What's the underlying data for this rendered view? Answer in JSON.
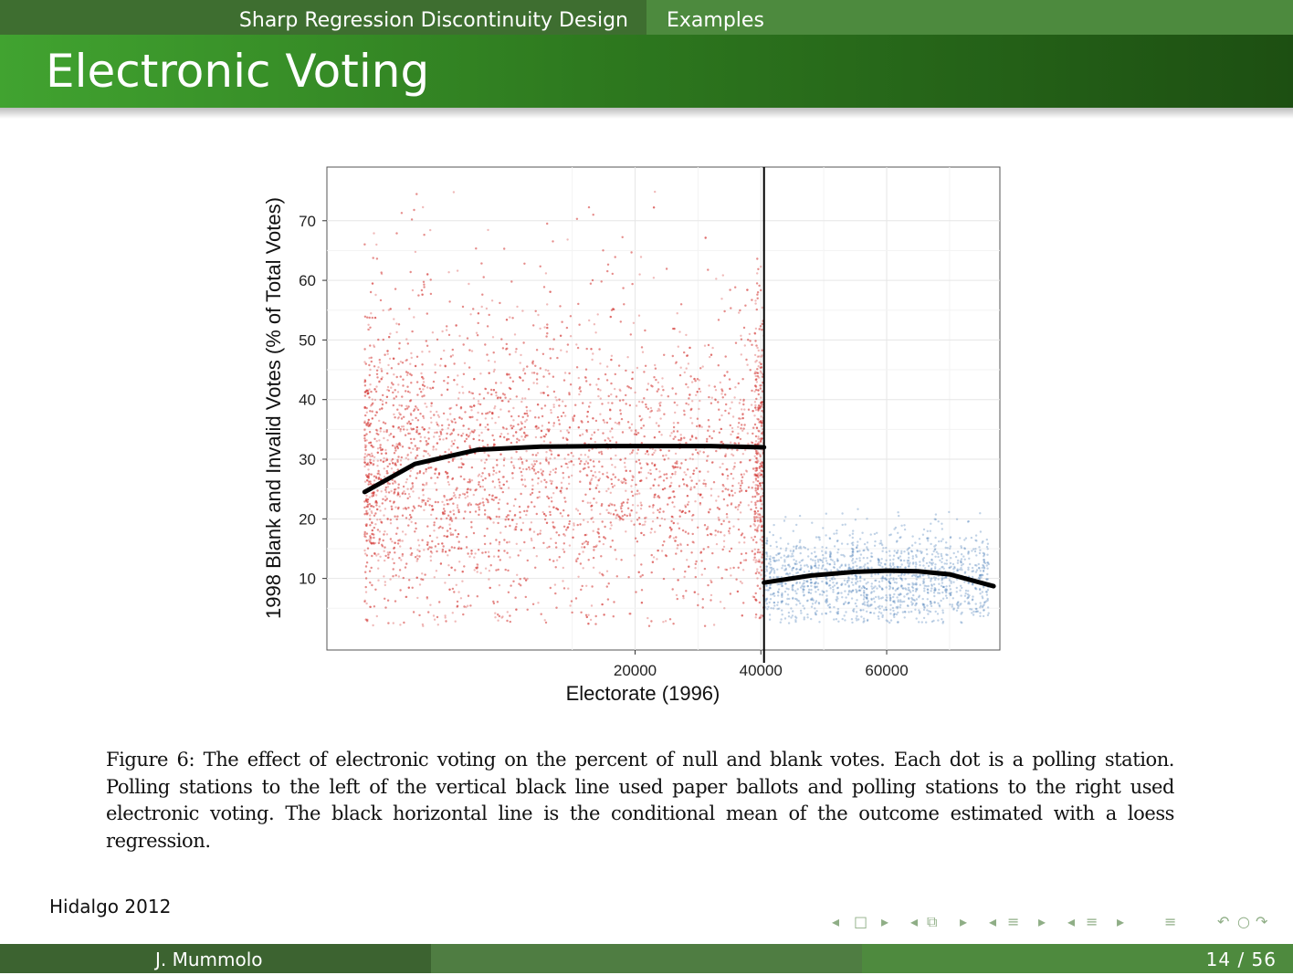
{
  "nav": {
    "section": "Sharp Regression Discontinuity Design",
    "subsection": "Examples"
  },
  "frame": {
    "title": "Electronic Voting"
  },
  "figure": {
    "caption": "Figure 6: The effect of electronic voting on the percent of null and blank votes. Each dot is a polling station. Polling stations to the left of the vertical black line used paper ballots and polling stations to the right used electronic voting. The black horizontal line is the conditional mean of the outcome estimated with a loess regression."
  },
  "citation": "Hidalgo 2012",
  "footer": {
    "author": "J. Mummolo",
    "page": "14 / 56"
  },
  "navigation_icons": [
    "frame-prev-icon",
    "frame-icon",
    "frame-next-icon",
    "subsection-prev-icon",
    "subsection-icon",
    "subsection-next-icon",
    "section-prev-icon",
    "section-icon",
    "section-next-icon",
    "document-prev-icon",
    "document-icon",
    "document-next-icon",
    "align-icon",
    "back-icon",
    "search-icon",
    "forward-icon"
  ],
  "colors": {
    "header_green": "#2e7a1f",
    "paper_ballot_points": "#d43a36",
    "electronic_points": "#4a7fb8",
    "fit_line": "#000000"
  },
  "chart_data": {
    "type": "scatter",
    "title": "",
    "xlabel": "Electorate (1996)",
    "ylabel": "1998 Blank and Invalid Votes (% of Total Votes)",
    "xlim": [
      -29000,
      78000
    ],
    "ylim": [
      -2,
      79
    ],
    "x_ticks": [
      20000,
      40000,
      60000
    ],
    "y_ticks": [
      10,
      20,
      30,
      40,
      50,
      60,
      70
    ],
    "grid": true,
    "cutoff": 40500,
    "series": [
      {
        "color": "#d43a36",
        "x_range": [
          -23000,
          40500
        ],
        "y_center": 28,
        "y_spread": 12,
        "point_count": 5500
      },
      {
        "color": "#4a7fb8",
        "x_range": [
          40500,
          77000
        ],
        "y_center": 10,
        "y_spread": 4,
        "point_count": 1500
      }
    ],
    "fit_lines": [
      {
        "side": "left",
        "x": [
          -23000,
          -15000,
          -5000,
          5000,
          15000,
          25000,
          32000,
          40500
        ],
        "y": [
          24.5,
          29.2,
          31.6,
          32.1,
          32.2,
          32.2,
          32.2,
          32.0
        ]
      },
      {
        "side": "right",
        "x": [
          40500,
          48000,
          55000,
          60000,
          65000,
          70000,
          77000
        ],
        "y": [
          9.3,
          10.5,
          11.1,
          11.3,
          11.2,
          10.7,
          8.7
        ]
      }
    ]
  }
}
